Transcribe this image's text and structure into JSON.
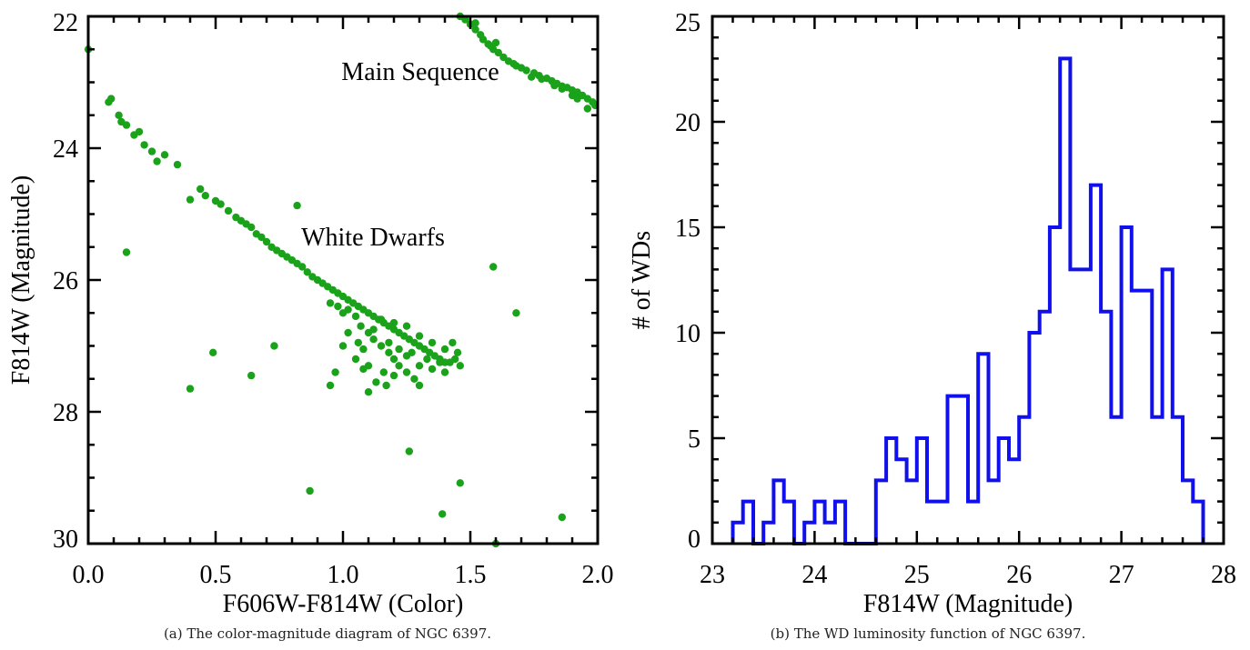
{
  "figure": {
    "captions": {
      "a": "(a) The color-magnitude diagram of NGC 6397.",
      "b": "(b) The WD luminosity function of NGC 6397."
    }
  },
  "chart_data": [
    {
      "type": "scatter",
      "title": "",
      "xlabel": "F606W-F814W (Color)",
      "ylabel": "F814W (Magnitude)",
      "xlim": [
        0.0,
        2.0
      ],
      "ylim": [
        30.0,
        22.0
      ],
      "y_inverted": true,
      "xticks": [
        "0.0",
        "0.5",
        "1.0",
        "1.5",
        "2.0"
      ],
      "yticks": [
        "22",
        "24",
        "26",
        "28",
        "30"
      ],
      "marker_color": "#1aa31a",
      "annotations": [
        "Main Sequence",
        "White Dwarfs"
      ],
      "series": [
        {
          "name": "",
          "points": [
            [
              1.46,
              22.0
            ],
            [
              1.48,
              22.05
            ],
            [
              1.5,
              22.12
            ],
            [
              1.52,
              22.2
            ],
            [
              1.54,
              22.28
            ],
            [
              1.55,
              22.35
            ],
            [
              1.57,
              22.42
            ],
            [
              1.59,
              22.5
            ],
            [
              1.61,
              22.55
            ],
            [
              1.63,
              22.62
            ],
            [
              1.65,
              22.68
            ],
            [
              1.67,
              22.72
            ],
            [
              1.7,
              22.78
            ],
            [
              1.72,
              22.82
            ],
            [
              1.75,
              22.86
            ],
            [
              1.77,
              22.9
            ],
            [
              1.8,
              22.94
            ],
            [
              1.82,
              22.98
            ],
            [
              1.84,
              23.02
            ],
            [
              1.86,
              23.06
            ],
            [
              1.88,
              23.08
            ],
            [
              1.9,
              23.12
            ],
            [
              1.92,
              23.15
            ],
            [
              1.94,
              23.2
            ],
            [
              1.96,
              23.25
            ],
            [
              1.98,
              23.3
            ],
            [
              1.99,
              23.35
            ],
            [
              1.52,
              22.1
            ],
            [
              1.6,
              22.4
            ],
            [
              1.68,
              22.75
            ],
            [
              1.78,
              22.95
            ],
            [
              1.86,
              23.1
            ],
            [
              1.92,
              23.25
            ],
            [
              1.96,
              23.4
            ],
            [
              1.58,
              22.45
            ],
            [
              1.74,
              22.92
            ],
            [
              1.83,
              23.05
            ],
            [
              1.9,
              23.2
            ],
            [
              0.08,
              23.3
            ],
            [
              0.09,
              23.25
            ],
            [
              0.12,
              23.5
            ],
            [
              0.13,
              23.6
            ],
            [
              0.15,
              23.65
            ],
            [
              0.18,
              23.8
            ],
            [
              0.2,
              23.75
            ],
            [
              0.22,
              23.95
            ],
            [
              0.25,
              24.05
            ],
            [
              0.27,
              24.2
            ],
            [
              0.3,
              24.1
            ],
            [
              0.35,
              24.25
            ],
            [
              0.4,
              24.78
            ],
            [
              0.44,
              24.62
            ],
            [
              0.46,
              24.72
            ],
            [
              0.5,
              24.8
            ],
            [
              0.52,
              24.85
            ],
            [
              0.55,
              24.95
            ],
            [
              0.58,
              25.05
            ],
            [
              0.6,
              25.1
            ],
            [
              0.62,
              25.15
            ],
            [
              0.64,
              25.2
            ],
            [
              0.66,
              25.3
            ],
            [
              0.68,
              25.35
            ],
            [
              0.7,
              25.42
            ],
            [
              0.72,
              25.5
            ],
            [
              0.74,
              25.55
            ],
            [
              0.76,
              25.6
            ],
            [
              0.78,
              25.65
            ],
            [
              0.8,
              25.7
            ],
            [
              0.82,
              25.75
            ],
            [
              0.84,
              25.8
            ],
            [
              0.86,
              25.88
            ],
            [
              0.88,
              25.95
            ],
            [
              0.9,
              26.0
            ],
            [
              0.92,
              26.05
            ],
            [
              0.94,
              26.1
            ],
            [
              0.96,
              26.15
            ],
            [
              0.98,
              26.2
            ],
            [
              1.0,
              26.25
            ],
            [
              1.02,
              26.3
            ],
            [
              1.04,
              26.35
            ],
            [
              1.06,
              26.4
            ],
            [
              1.08,
              26.45
            ],
            [
              1.1,
              26.5
            ],
            [
              1.12,
              26.55
            ],
            [
              1.14,
              26.6
            ],
            [
              1.16,
              26.65
            ],
            [
              1.18,
              26.7
            ],
            [
              1.2,
              26.75
            ],
            [
              1.22,
              26.8
            ],
            [
              1.24,
              26.85
            ],
            [
              1.26,
              26.9
            ],
            [
              1.28,
              26.95
            ],
            [
              1.3,
              27.0
            ],
            [
              1.32,
              27.05
            ],
            [
              1.34,
              27.1
            ],
            [
              1.36,
              27.15
            ],
            [
              1.38,
              27.2
            ],
            [
              1.4,
              27.25
            ],
            [
              1.42,
              27.25
            ],
            [
              1.44,
              27.2
            ],
            [
              1.46,
              27.3
            ],
            [
              0.95,
              26.35
            ],
            [
              0.98,
              26.4
            ],
            [
              1.0,
              26.5
            ],
            [
              1.02,
              26.45
            ],
            [
              1.05,
              26.55
            ],
            [
              1.07,
              26.7
            ],
            [
              1.1,
              26.8
            ],
            [
              1.12,
              26.9
            ],
            [
              1.15,
              27.0
            ],
            [
              1.18,
              27.1
            ],
            [
              1.2,
              27.2
            ],
            [
              1.22,
              27.3
            ],
            [
              1.25,
              27.4
            ],
            [
              1.28,
              27.5
            ],
            [
              1.3,
              27.6
            ],
            [
              1.1,
              27.7
            ],
            [
              1.13,
              27.55
            ],
            [
              1.17,
              27.6
            ],
            [
              1.2,
              27.45
            ],
            [
              1.25,
              27.15
            ],
            [
              1.3,
              27.3
            ],
            [
              1.35,
              27.35
            ],
            [
              1.38,
              27.25
            ],
            [
              1.4,
              27.4
            ],
            [
              1.05,
              27.2
            ],
            [
              1.08,
              27.35
            ],
            [
              1.0,
              27.0
            ],
            [
              0.97,
              27.4
            ],
            [
              0.95,
              27.6
            ],
            [
              1.02,
              26.8
            ],
            [
              1.12,
              26.75
            ],
            [
              1.15,
              26.6
            ],
            [
              1.2,
              26.65
            ],
            [
              1.25,
              26.7
            ],
            [
              1.3,
              26.85
            ],
            [
              1.35,
              26.95
            ],
            [
              1.4,
              27.05
            ],
            [
              1.43,
              26.95
            ],
            [
              1.45,
              27.1
            ],
            [
              1.06,
              26.95
            ],
            [
              1.08,
              27.05
            ],
            [
              1.18,
              26.95
            ],
            [
              1.22,
              27.05
            ],
            [
              1.27,
              27.1
            ],
            [
              1.33,
              27.2
            ],
            [
              1.1,
              27.3
            ],
            [
              1.16,
              27.4
            ],
            [
              0.15,
              25.58
            ],
            [
              0.82,
              24.87
            ],
            [
              0.49,
              27.1
            ],
            [
              0.4,
              27.65
            ],
            [
              0.64,
              27.45
            ],
            [
              0.73,
              27.0
            ],
            [
              1.59,
              25.8
            ],
            [
              1.68,
              26.5
            ],
            [
              1.26,
              28.6
            ],
            [
              1.46,
              29.08
            ],
            [
              0.87,
              29.2
            ],
            [
              1.39,
              29.55
            ],
            [
              1.86,
              29.6
            ],
            [
              1.6,
              30.0
            ],
            [
              0.0,
              22.5
            ]
          ]
        }
      ]
    },
    {
      "type": "histogram",
      "title": "",
      "xlabel": "F814W (Magnitude)",
      "ylabel": "# of WDs",
      "xlim": [
        23.0,
        28.0
      ],
      "ylim": [
        0,
        25
      ],
      "xticks": [
        "23",
        "24",
        "25",
        "26",
        "27",
        "28"
      ],
      "yticks": [
        "0",
        "5",
        "10",
        "15",
        "20",
        "25"
      ],
      "line_color": "#1010ee",
      "bin_width": 0.1,
      "series": [
        {
          "name": "",
          "bin_left_edges": [
            23.2,
            23.3,
            23.4,
            23.5,
            23.6,
            23.7,
            23.8,
            23.9,
            24.0,
            24.1,
            24.2,
            24.3,
            24.4,
            24.5,
            24.6,
            24.7,
            24.8,
            24.9,
            25.0,
            25.1,
            25.2,
            25.3,
            25.4,
            25.5,
            25.6,
            25.7,
            25.8,
            25.9,
            26.0,
            26.1,
            26.2,
            26.3,
            26.4,
            26.5,
            26.6,
            26.7,
            26.8,
            26.9,
            27.0,
            27.1,
            27.2,
            27.3,
            27.4,
            27.5,
            27.6,
            27.7
          ],
          "counts": [
            1,
            2,
            0,
            1,
            3,
            2,
            0,
            1,
            2,
            1,
            2,
            0,
            0,
            0,
            3,
            5,
            4,
            3,
            5,
            2,
            2,
            7,
            7,
            2,
            9,
            3,
            5,
            4,
            6,
            10,
            11,
            15,
            23,
            13,
            13,
            17,
            11,
            6,
            15,
            12,
            12,
            6,
            13,
            6,
            3,
            2
          ]
        }
      ]
    }
  ]
}
